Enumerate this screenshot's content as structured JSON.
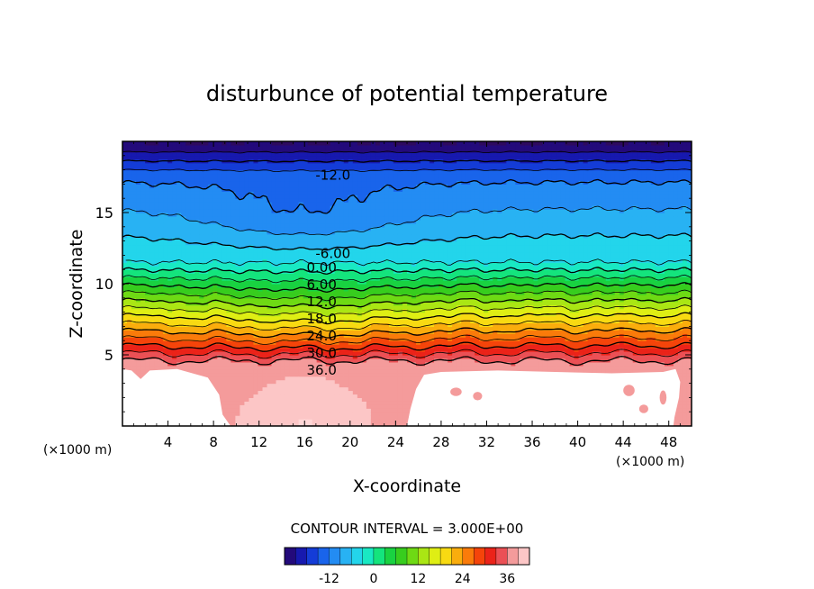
{
  "chart_data": {
    "type": "contour",
    "title": "disturbunce of potential temperature",
    "xlabel": "X-coordinate",
    "ylabel": "Z-coordinate",
    "x_unit_left": "(×1000 m)",
    "x_unit_right": "(×1000 m)",
    "xlim": [
      0,
      50
    ],
    "ylim": [
      0,
      20
    ],
    "x_ticks": [
      "4",
      "8",
      "12",
      "16",
      "20",
      "24",
      "28",
      "32",
      "36",
      "40",
      "44",
      "48"
    ],
    "y_ticks": [
      "5",
      "10",
      "15"
    ],
    "contour_interval_label": "CONTOUR INTERVAL = 3.000E+00",
    "contour_levels": [
      -21,
      -18,
      -15,
      -12,
      -9,
      -6,
      -3,
      0,
      3,
      6,
      9,
      12,
      15,
      18,
      21,
      24,
      27,
      30,
      33,
      36
    ],
    "contour_labels": [
      {
        "text": "-12.0",
        "x": 18.5,
        "z": 17.6
      },
      {
        "text": "-6.00",
        "x": 18.5,
        "z": 12.1
      },
      {
        "text": "0.00",
        "x": 17.5,
        "z": 11.1
      },
      {
        "text": "6.00",
        "x": 17.5,
        "z": 9.9
      },
      {
        "text": "12.0",
        "x": 17.5,
        "z": 8.7
      },
      {
        "text": "18.0",
        "x": 17.5,
        "z": 7.5
      },
      {
        "text": "24.0",
        "x": 17.5,
        "z": 6.3
      },
      {
        "text": "30.0",
        "x": 17.5,
        "z": 5.1
      },
      {
        "text": "36.0",
        "x": 17.5,
        "z": 3.9
      }
    ],
    "colorbar": {
      "vmin": -24,
      "vmax": 42,
      "ticks": [
        "-12",
        "0",
        "12",
        "24",
        "36"
      ],
      "tick_values": [
        -12,
        0,
        12,
        24,
        36
      ]
    }
  }
}
